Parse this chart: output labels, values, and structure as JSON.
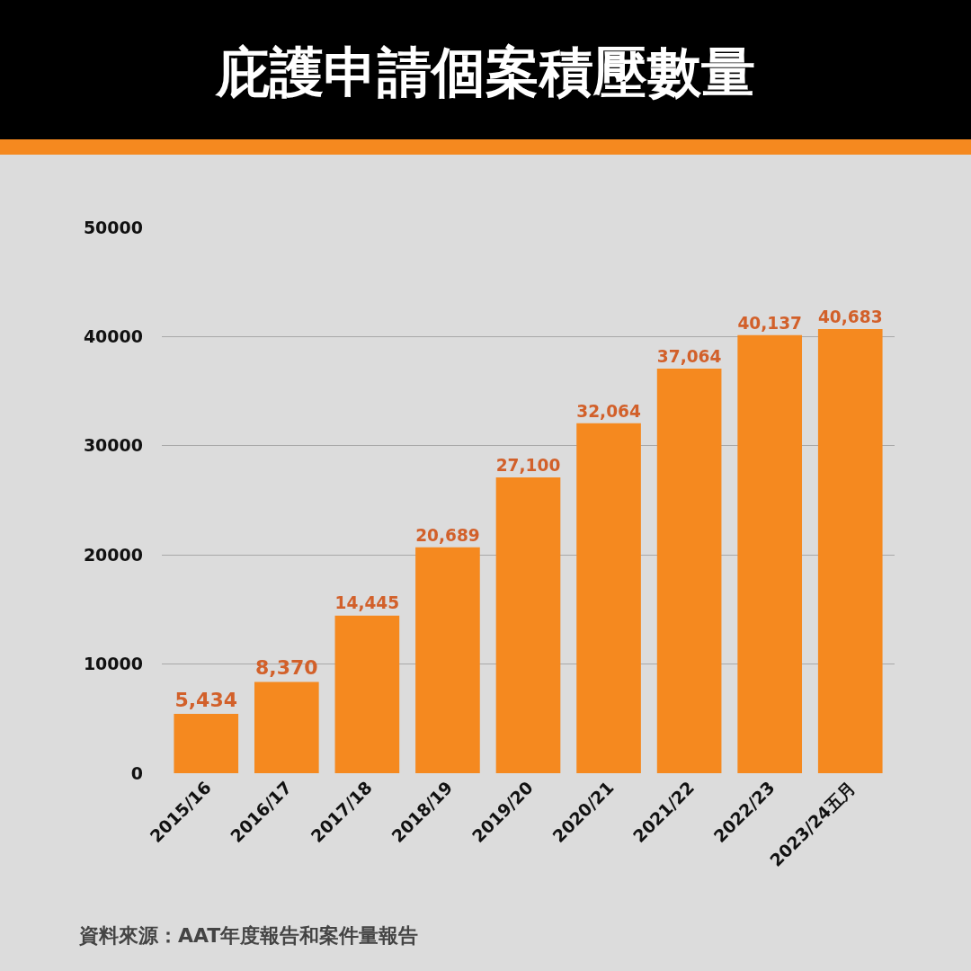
{
  "chart_data": {
    "type": "bar",
    "title": "庇護申請個案積壓數量",
    "categories": [
      "2015/16",
      "2016/17",
      "2017/18",
      "2018/19",
      "2019/20",
      "2020/21",
      "2021/22",
      "2022/23",
      "2023/24五月"
    ],
    "values": [
      5434,
      8370,
      14445,
      20689,
      27100,
      32064,
      37064,
      40137,
      40683
    ],
    "color": "#f5891f",
    "ylim": [
      0,
      50000
    ],
    "yticks": [
      0,
      10000,
      20000,
      30000,
      40000,
      50000
    ],
    "value_labels": [
      "5,434",
      "8,370",
      "14,445",
      "20,689",
      "27,100",
      "32,064",
      "37,064",
      "40,137",
      "40,683"
    ],
    "grid": "y",
    "annotations": [
      "資料來源：AAT年度報告和案件量報告"
    ]
  }
}
